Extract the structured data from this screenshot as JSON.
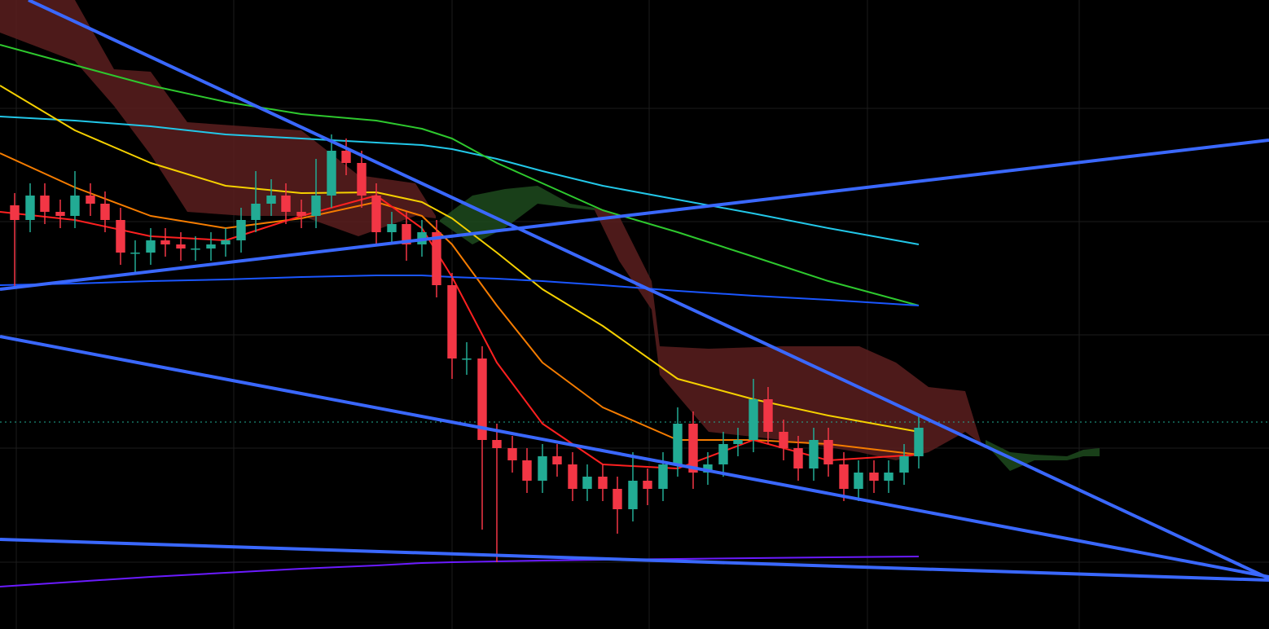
{
  "chart_data": {
    "type": "candlestick",
    "xlim": [
      0,
      155.8
    ],
    "ylim": [
      0,
      77.2
    ],
    "xticks": [
      2.0,
      28.7,
      55.5,
      79.7,
      106.5,
      132.5
    ],
    "yticks": [
      63.9,
      50.0,
      36.1,
      22.2,
      8.2
    ],
    "grid": true,
    "up_color": "#22ab94",
    "down_color": "#f23645",
    "x": [
      1.8,
      3.7,
      5.5,
      7.4,
      9.2,
      11.1,
      12.9,
      14.8,
      16.6,
      18.5,
      20.3,
      22.2,
      24.0,
      25.9,
      27.7,
      29.6,
      31.4,
      33.3,
      35.1,
      37.0,
      38.8,
      40.7,
      42.5,
      44.4,
      46.2,
      48.1,
      49.9,
      51.8,
      53.6,
      55.5,
      57.3,
      59.2,
      61.0,
      62.9,
      64.7,
      66.6,
      68.4,
      70.3,
      72.1,
      74.0,
      75.8,
      77.7,
      79.5,
      81.4,
      83.2,
      85.1,
      86.9,
      88.8,
      90.6,
      92.5,
      94.3,
      96.2,
      98.0,
      99.9,
      101.7,
      103.6,
      105.4,
      107.3,
      109.1,
      111.0,
      112.8
    ],
    "open": [
      52.0,
      50.2,
      53.2,
      51.2,
      50.7,
      53.2,
      52.2,
      50.2,
      46.2,
      46.2,
      47.7,
      47.2,
      46.7,
      46.7,
      47.2,
      47.7,
      50.2,
      52.2,
      53.2,
      51.2,
      50.7,
      53.2,
      58.7,
      57.2,
      53.2,
      48.7,
      49.7,
      47.2,
      48.7,
      42.2,
      33.2,
      33.2,
      23.2,
      22.2,
      20.7,
      18.2,
      21.2,
      20.2,
      17.2,
      18.7,
      17.2,
      14.7,
      18.2,
      17.2,
      20.2,
      25.2,
      19.2,
      20.2,
      22.7,
      23.2,
      28.2,
      24.2,
      22.2,
      19.7,
      23.2,
      20.2,
      17.2,
      19.2,
      18.2,
      19.2,
      21.2
    ],
    "high": [
      53.5,
      54.7,
      54.7,
      52.7,
      56.2,
      54.7,
      53.7,
      51.7,
      47.7,
      49.2,
      49.2,
      48.7,
      48.2,
      48.7,
      49.2,
      51.7,
      56.2,
      55.2,
      54.7,
      52.7,
      57.7,
      60.7,
      60.2,
      58.7,
      54.7,
      51.2,
      51.2,
      50.2,
      50.2,
      43.7,
      35.2,
      34.7,
      25.2,
      23.7,
      22.2,
      22.7,
      22.7,
      21.7,
      20.2,
      20.2,
      18.7,
      21.7,
      19.7,
      21.7,
      27.2,
      26.7,
      21.7,
      24.2,
      24.7,
      30.7,
      29.7,
      25.7,
      23.7,
      24.7,
      24.7,
      21.7,
      20.7,
      20.7,
      20.7,
      22.7,
      26.2
    ],
    "low": [
      42.0,
      48.7,
      49.7,
      49.2,
      49.2,
      50.7,
      48.7,
      44.7,
      43.7,
      44.7,
      45.7,
      45.2,
      45.2,
      45.2,
      45.7,
      46.2,
      48.7,
      50.7,
      49.7,
      49.2,
      49.2,
      51.7,
      55.7,
      51.7,
      47.2,
      47.2,
      45.2,
      45.7,
      40.7,
      30.7,
      31.2,
      12.2,
      8.2,
      19.2,
      16.7,
      16.7,
      18.7,
      15.7,
      15.7,
      15.7,
      11.7,
      13.2,
      15.2,
      15.7,
      18.7,
      17.2,
      17.7,
      18.7,
      21.2,
      21.7,
      22.7,
      20.7,
      18.2,
      18.2,
      18.7,
      15.7,
      15.7,
      16.7,
      16.7,
      17.7,
      19.7
    ],
    "close": [
      50.2,
      53.2,
      51.2,
      50.7,
      53.2,
      52.2,
      50.2,
      46.2,
      46.2,
      47.7,
      47.2,
      46.7,
      46.7,
      47.2,
      47.7,
      50.2,
      52.2,
      53.2,
      51.2,
      50.7,
      53.2,
      58.7,
      57.2,
      53.2,
      48.7,
      49.7,
      47.2,
      48.7,
      42.2,
      33.2,
      33.2,
      23.2,
      22.2,
      20.7,
      18.2,
      21.2,
      20.2,
      17.2,
      18.7,
      17.2,
      14.7,
      18.2,
      17.2,
      20.2,
      25.2,
      19.2,
      20.2,
      22.7,
      23.2,
      28.2,
      24.2,
      22.2,
      19.7,
      23.2,
      20.2,
      17.2,
      19.2,
      18.2,
      19.2,
      21.2,
      24.7
    ],
    "cloud": [
      {
        "color": "#5a1e1e",
        "x": [
          0,
          9.2,
          14.0,
          18.5,
          23.0,
          30.0,
          37.0,
          44.0,
          51.0,
          53.5
        ],
        "upper": [
          77.2,
          77.2,
          68.7,
          68.4,
          62.2,
          61.7,
          61.2,
          55.7,
          54.7,
          50.7
        ],
        "lower": [
          73.2,
          69.7,
          64.2,
          58.2,
          51.2,
          50.7,
          50.7,
          48.2,
          50.7,
          50.4
        ]
      },
      {
        "color": "#1d4a1d",
        "x": [
          54.0,
          58.0,
          62.0,
          66.0,
          70.0,
          73.0
        ],
        "upper": [
          50.2,
          53.2,
          54.0,
          54.4,
          52.2,
          51.7
        ],
        "lower": [
          50.0,
          47.2,
          49.2,
          52.2,
          51.7,
          51.4
        ]
      },
      {
        "color": "#5a1e1e",
        "x": [
          73.0,
          76.0,
          80.0,
          81.0,
          87.0,
          96.0,
          105.5,
          110.0,
          114.0,
          118.5,
          120.5
        ],
        "upper": [
          51.7,
          50.7,
          42.7,
          34.7,
          34.4,
          34.7,
          34.7,
          32.7,
          29.7,
          29.2,
          22.7
        ],
        "lower": [
          51.4,
          45.2,
          39.2,
          31.2,
          24.2,
          23.2,
          21.7,
          20.7,
          21.7,
          24.2,
          22.7
        ]
      },
      {
        "color": "#1d4a1d",
        "x": [
          121.0,
          124.0,
          127.0,
          131.0,
          133.0,
          135.0
        ],
        "upper": [
          23.2,
          21.7,
          21.4,
          21.2,
          22.0,
          22.2
        ],
        "lower": [
          22.7,
          19.4,
          20.7,
          20.7,
          21.2,
          21.2
        ]
      }
    ],
    "series": [
      {
        "color": "#22c7e8",
        "x": [
          0,
          9.2,
          18.5,
          27.7,
          37.0,
          46.2,
          51.8,
          55.5,
          61.0,
          66.6,
          74.0,
          83.2,
          92.5,
          101.7,
          112.8
        ],
        "values": [
          62.9,
          62.4,
          61.7,
          60.7,
          60.2,
          59.7,
          59.4,
          58.9,
          57.7,
          56.2,
          54.4,
          52.7,
          51.0,
          49.2,
          47.2
        ]
      },
      {
        "color": "#2ec82e",
        "x": [
          0,
          9.2,
          18.5,
          27.7,
          37.0,
          46.2,
          51.8,
          55.5,
          61.0,
          66.6,
          74.0,
          83.2,
          92.5,
          101.7,
          112.8
        ],
        "values": [
          71.7,
          69.2,
          66.7,
          64.7,
          63.2,
          62.4,
          61.4,
          60.2,
          57.2,
          54.7,
          51.4,
          48.7,
          45.7,
          42.7,
          39.7
        ]
      },
      {
        "color": "#f5d000",
        "x": [
          0,
          9.2,
          18.5,
          27.7,
          37.0,
          46.2,
          51.8,
          55.5,
          61.0,
          66.6,
          74.0,
          83.2,
          92.5,
          101.7,
          112.8
        ],
        "values": [
          66.7,
          61.2,
          57.2,
          54.4,
          53.5,
          53.6,
          52.4,
          50.4,
          46.2,
          41.7,
          37.2,
          30.7,
          28.2,
          26.2,
          24.2
        ]
      },
      {
        "color": "#f57c00",
        "x": [
          0,
          9.2,
          18.5,
          27.7,
          37.0,
          46.2,
          51.8,
          55.5,
          61.0,
          66.6,
          74.0,
          83.2,
          92.5,
          101.7,
          112.8
        ],
        "values": [
          58.4,
          54.2,
          50.7,
          49.2,
          50.4,
          52.4,
          50.7,
          47.2,
          39.7,
          32.7,
          27.2,
          23.2,
          23.2,
          22.7,
          21.4
        ]
      },
      {
        "color": "#ff2020",
        "x": [
          0,
          9.2,
          18.5,
          27.7,
          37.0,
          46.2,
          51.8,
          55.5,
          61.0,
          66.6,
          74.0,
          83.2,
          92.5,
          101.7,
          112.8
        ],
        "values": [
          51.2,
          50.2,
          48.2,
          47.7,
          50.7,
          53.2,
          49.2,
          43.2,
          32.7,
          25.2,
          20.2,
          19.7,
          23.2,
          20.7,
          21.4
        ]
      },
      {
        "color": "#1a56ff",
        "x": [
          0,
          9.2,
          18.5,
          27.7,
          37.0,
          46.2,
          51.8,
          55.5,
          61.0,
          66.6,
          74.0,
          83.2,
          92.5,
          101.7,
          112.8
        ],
        "values": [
          42.2,
          42.4,
          42.7,
          42.9,
          43.2,
          43.4,
          43.4,
          43.2,
          43.0,
          42.7,
          42.2,
          41.5,
          40.9,
          40.4,
          39.7
        ]
      },
      {
        "color": "#6a1bff",
        "x": [
          0,
          9.2,
          18.5,
          27.7,
          37.0,
          46.2,
          51.8,
          55.5,
          61.0,
          66.6,
          74.0,
          83.2,
          92.5,
          101.7,
          112.8
        ],
        "values": [
          5.2,
          5.8,
          6.4,
          6.9,
          7.4,
          7.8,
          8.1,
          8.2,
          8.3,
          8.4,
          8.5,
          8.6,
          8.7,
          8.8,
          8.9
        ]
      }
    ],
    "trendlines": [
      {
        "color": "#3a68ff",
        "x": [
          3.5,
          155.8
        ],
        "values": [
          77.2,
          6.2
        ]
      },
      {
        "color": "#3a68ff",
        "x": [
          0,
          155.8
        ],
        "values": [
          41.7,
          60.0
        ]
      },
      {
        "color": "#3a68ff",
        "x": [
          0,
          155.8
        ],
        "values": [
          35.9,
          6.4
        ]
      },
      {
        "color": "#3a68ff",
        "x": [
          0,
          155.8
        ],
        "values": [
          11.0,
          6.0
        ]
      }
    ],
    "price_line": {
      "value": 25.4,
      "color": "#22ab94"
    }
  }
}
